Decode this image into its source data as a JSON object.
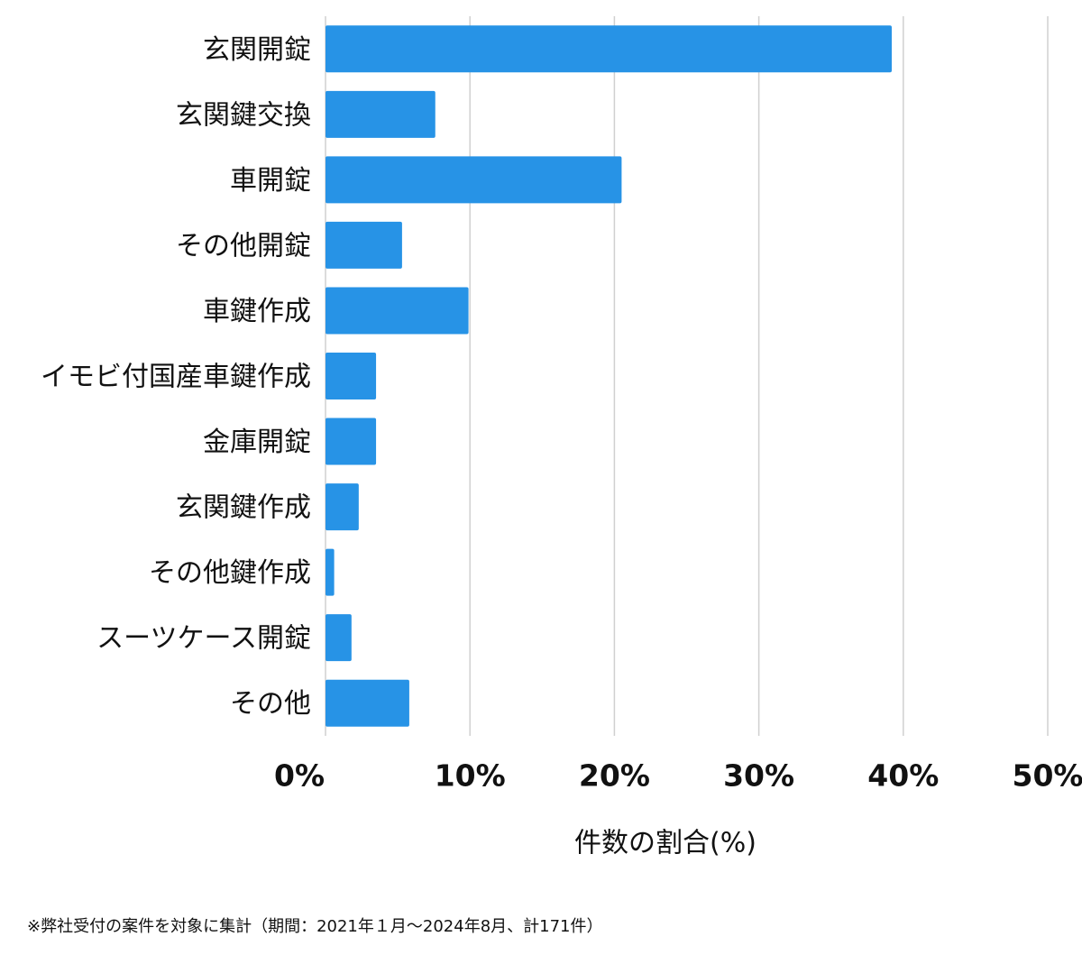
{
  "chart_data": {
    "type": "barh",
    "categories": [
      "玄関開錠",
      "玄関鍵交換",
      "車開錠",
      "その他開錠",
      "車鍵作成",
      "イモビ付国産車鍵作成",
      "金庫開錠",
      "玄関鍵作成",
      "その他鍵作成",
      "スーツケース開錠",
      "その他"
    ],
    "values": [
      39.2,
      7.6,
      20.5,
      5.3,
      9.9,
      3.5,
      3.5,
      2.3,
      0.6,
      1.8,
      5.8
    ],
    "color": "#2793e6",
    "xlim": [
      0,
      50
    ],
    "xticks": [
      {
        "value": 0,
        "label": "0%"
      },
      {
        "value": 10,
        "label": "10%"
      },
      {
        "value": 20,
        "label": "20%"
      },
      {
        "value": 30,
        "label": "30%"
      },
      {
        "value": 40,
        "label": "40%"
      },
      {
        "value": 50,
        "label": "50%"
      }
    ],
    "grid": true,
    "xlabel": "件数の割合(%)",
    "footnote": "※弊社受付の案件を対象に集計（期間：2021年１月〜2024年8月、計171件）"
  }
}
